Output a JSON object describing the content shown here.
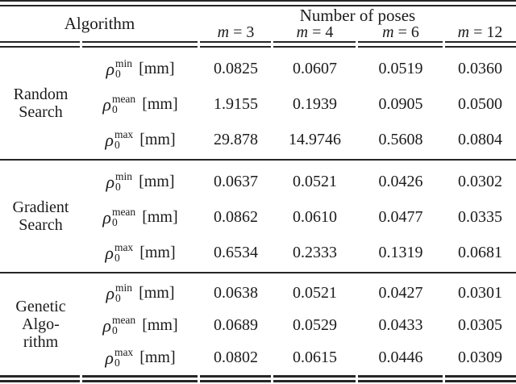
{
  "colors": {
    "text": "#1b1b1b",
    "rule": "#262626",
    "background": "#ffffff"
  },
  "header": {
    "algorithm_label": "Algorithm",
    "poses_label": "Number of poses",
    "pose_columns": [
      {
        "var": "m",
        "eq": "=",
        "val": "3"
      },
      {
        "var": "m",
        "eq": "=",
        "val": "4"
      },
      {
        "var": "m",
        "eq": "=",
        "val": "6"
      },
      {
        "var": "m",
        "eq": "=",
        "val": "12"
      }
    ]
  },
  "blocks": [
    {
      "name_lines": [
        "Random",
        "Search"
      ],
      "rows": [
        {
          "metric": {
            "symbol": "ρ",
            "sub": "0",
            "sup": "min",
            "unit": "[mm]"
          },
          "values": [
            "0.0825",
            "0.0607",
            "0.0519",
            "0.0360"
          ]
        },
        {
          "metric": {
            "symbol": "ρ",
            "sub": "0",
            "sup": "mean",
            "unit": "[mm]"
          },
          "values": [
            "1.9155",
            "0.1939",
            "0.0905",
            "0.0500"
          ]
        },
        {
          "metric": {
            "symbol": "ρ",
            "sub": "0",
            "sup": "max",
            "unit": "[mm]"
          },
          "values": [
            "29.878",
            "14.9746",
            "0.5608",
            "0.0804"
          ]
        }
      ]
    },
    {
      "name_lines": [
        "Gradient",
        "Search"
      ],
      "rows": [
        {
          "metric": {
            "symbol": "ρ",
            "sub": "0",
            "sup": "min",
            "unit": "[mm]"
          },
          "values": [
            "0.0637",
            "0.0521",
            "0.0426",
            "0.0302"
          ]
        },
        {
          "metric": {
            "symbol": "ρ",
            "sub": "0",
            "sup": "mean",
            "unit": "[mm]"
          },
          "values": [
            "0.0862",
            "0.0610",
            "0.0477",
            "0.0335"
          ]
        },
        {
          "metric": {
            "symbol": "ρ",
            "sub": "0",
            "sup": "max",
            "unit": "[mm]"
          },
          "values": [
            "0.6534",
            "0.2333",
            "0.1319",
            "0.0681"
          ]
        }
      ]
    },
    {
      "name_lines": [
        "Genetic",
        "Algo-",
        "rithm"
      ],
      "rows": [
        {
          "metric": {
            "symbol": "ρ",
            "sub": "0",
            "sup": "min",
            "unit": "[mm]"
          },
          "values": [
            "0.0638",
            "0.0521",
            "0.0427",
            "0.0301"
          ]
        },
        {
          "metric": {
            "symbol": "ρ",
            "sub": "0",
            "sup": "mean",
            "unit": "[mm]"
          },
          "values": [
            "0.0689",
            "0.0529",
            "0.0433",
            "0.0305"
          ]
        },
        {
          "metric": {
            "symbol": "ρ",
            "sub": "0",
            "sup": "max",
            "unit": "[mm]"
          },
          "values": [
            "0.0802",
            "0.0615",
            "0.0446",
            "0.0309"
          ]
        }
      ]
    }
  ]
}
